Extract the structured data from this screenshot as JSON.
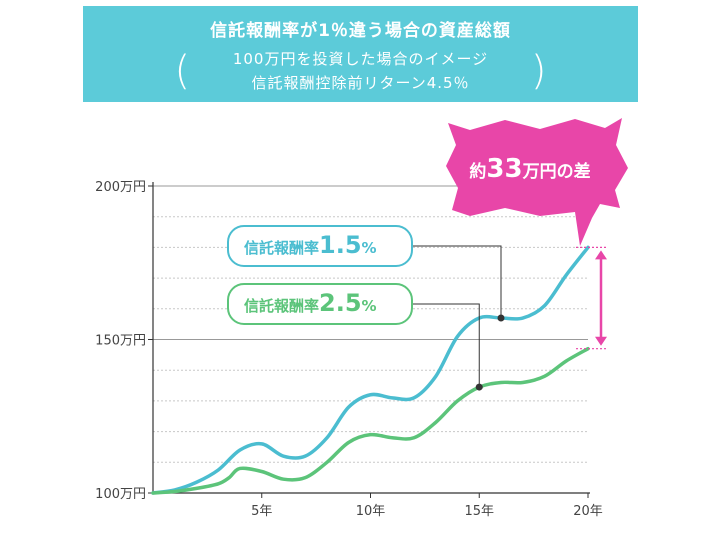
{
  "header": {
    "title": "信託報酬率が1％違う場合の資産総額",
    "sub1": "100万円を投資した場合のイメージ",
    "sub2": "信託報酬控除前リターン4.5％"
  },
  "callout": {
    "prefix": "約",
    "number": "33",
    "suffix": "万円の差"
  },
  "colors": {
    "series1": "#4bbdd0",
    "series2": "#5cc47a",
    "accent": "#e846a8"
  },
  "chart_data": {
    "type": "line",
    "ylim": [
      100,
      200
    ],
    "xlim": [
      0,
      20
    ],
    "y_ticks": [
      {
        "value": 200,
        "label": "200万円"
      },
      {
        "value": 150,
        "label": "150万円"
      },
      {
        "value": 100,
        "label": "100万円"
      }
    ],
    "x_ticks": [
      {
        "value": 5,
        "label": "5年"
      },
      {
        "value": 10,
        "label": "10年"
      },
      {
        "value": 15,
        "label": "15年"
      },
      {
        "value": 20,
        "label": "20年"
      }
    ],
    "series": [
      {
        "name": "信託報酬率1.5％",
        "label_main": "信託報酬率",
        "label_rate": "1.5",
        "label_pct": "%",
        "points": [
          [
            0,
            100
          ],
          [
            1,
            101
          ],
          [
            2,
            103.5
          ],
          [
            3,
            107.5
          ],
          [
            4,
            114
          ],
          [
            5,
            116
          ],
          [
            6,
            112
          ],
          [
            7,
            112
          ],
          [
            8,
            118
          ],
          [
            9,
            128
          ],
          [
            10,
            132
          ],
          [
            11,
            131
          ],
          [
            12,
            131
          ],
          [
            13,
            138
          ],
          [
            14,
            151
          ],
          [
            15,
            157
          ],
          [
            16,
            157
          ],
          [
            17,
            157
          ],
          [
            18,
            161
          ],
          [
            19,
            171
          ],
          [
            20,
            180
          ]
        ],
        "marker": [
          16,
          157
        ]
      },
      {
        "name": "信託報酬率2.5％",
        "label_main": "信託報酬率",
        "label_rate": "2.5",
        "label_pct": "%",
        "points": [
          [
            0,
            100
          ],
          [
            1,
            100.5
          ],
          [
            2,
            101.5
          ],
          [
            3,
            103
          ],
          [
            3.5,
            105
          ],
          [
            4,
            108
          ],
          [
            5,
            107
          ],
          [
            6,
            104.5
          ],
          [
            7,
            105
          ],
          [
            8,
            110
          ],
          [
            9,
            116.5
          ],
          [
            10,
            119
          ],
          [
            11,
            118
          ],
          [
            12,
            118
          ],
          [
            13,
            123
          ],
          [
            14,
            130
          ],
          [
            15,
            134.5
          ],
          [
            16,
            136
          ],
          [
            17,
            136
          ],
          [
            18,
            138
          ],
          [
            19,
            143
          ],
          [
            20,
            147
          ]
        ],
        "marker": [
          15,
          134.5
        ]
      }
    ],
    "difference": {
      "value": 33,
      "from": 147,
      "to": 180,
      "x": 20
    }
  }
}
